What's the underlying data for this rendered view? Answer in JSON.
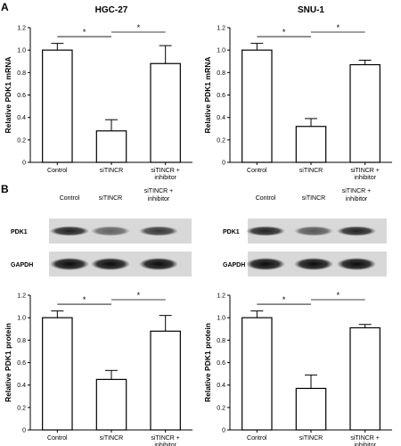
{
  "panel_labels": {
    "a": "A",
    "b": "B"
  },
  "blots": [
    {
      "headers": [
        "Control",
        "siTINCR",
        "siTINCR +",
        "inhibitor"
      ],
      "rows": [
        {
          "label": "PDK1",
          "intensity": [
            0.85,
            0.55,
            0.75
          ]
        },
        {
          "label": "GAPDH",
          "intensity": [
            0.95,
            0.95,
            0.95
          ]
        }
      ]
    },
    {
      "headers": [
        "Control",
        "siTINCR",
        "siTINCR +",
        "inhibitor"
      ],
      "rows": [
        {
          "label": "PDK1",
          "intensity": [
            0.85,
            0.6,
            0.85
          ]
        },
        {
          "label": "GAPDH",
          "intensity": [
            0.95,
            0.95,
            0.95
          ]
        }
      ]
    }
  ],
  "chart_data": [
    {
      "type": "bar",
      "title": "HGC-27",
      "ylabel": "Relative PDK1 mRNA",
      "categories": [
        "Control",
        "siTINCR",
        "siTINCR +\ninhibitor"
      ],
      "values": [
        1.0,
        0.28,
        0.88
      ],
      "errors": [
        0.06,
        0.1,
        0.16
      ],
      "ylim": [
        0,
        1.2
      ],
      "yticks": [
        "0",
        "0.2",
        "0.4",
        "0.6",
        "0.8",
        "1.0",
        "1.2"
      ],
      "significance": [
        "*",
        "*"
      ]
    },
    {
      "type": "bar",
      "title": "SNU-1",
      "ylabel": "Relative PDK1 mRNA",
      "categories": [
        "Control",
        "siTINCR",
        "siTINCR +\ninhibitor"
      ],
      "values": [
        1.0,
        0.32,
        0.87
      ],
      "errors": [
        0.06,
        0.07,
        0.04
      ],
      "ylim": [
        0,
        1.2
      ],
      "yticks": [
        "0",
        "0.2",
        "0.4",
        "0.6",
        "0.8",
        "1.0",
        "1.2"
      ],
      "significance": [
        "*",
        "*"
      ]
    },
    {
      "type": "bar",
      "title": "",
      "ylabel": "Relative PDK1 protein",
      "categories": [
        "Control",
        "siTINCR",
        "siTINCR +\ninhibitor"
      ],
      "values": [
        1.0,
        0.45,
        0.88
      ],
      "errors": [
        0.06,
        0.08,
        0.14
      ],
      "ylim": [
        0,
        1.2
      ],
      "yticks": [
        "0",
        "0.2",
        "0.4",
        "0.6",
        "0.8",
        "1.0",
        "1.2"
      ],
      "significance": [
        "*",
        "*"
      ]
    },
    {
      "type": "bar",
      "title": "",
      "ylabel": "Relative PDK1 protein",
      "categories": [
        "Control",
        "siTINCR",
        "siTINCR +\ninhibitor"
      ],
      "values": [
        1.0,
        0.37,
        0.91
      ],
      "errors": [
        0.06,
        0.12,
        0.03
      ],
      "ylim": [
        0,
        1.2
      ],
      "yticks": [
        "0",
        "0.2",
        "0.4",
        "0.6",
        "0.8",
        "1.0",
        "1.2"
      ],
      "significance": [
        "*",
        "*"
      ]
    }
  ]
}
